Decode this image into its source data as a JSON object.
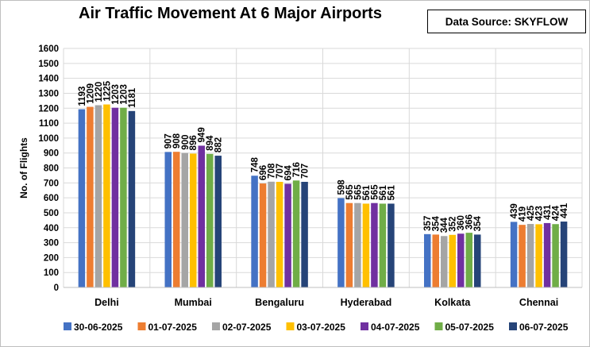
{
  "title": "Air Traffic Movement At 6 Major Airports",
  "source_label": "Data Source: SKYFLOW",
  "chart_data": {
    "type": "bar",
    "ylabel": "No. of Flights",
    "xlabel": "",
    "ylim": [
      0,
      1600
    ],
    "yticks": [
      0,
      100,
      200,
      300,
      400,
      500,
      600,
      700,
      800,
      900,
      1000,
      1100,
      1200,
      1300,
      1400,
      1500,
      1600
    ],
    "grid": true,
    "legend_position": "bottom",
    "data_labels": true,
    "categories": [
      "Delhi",
      "Mumbai",
      "Bengaluru",
      "Hyderabad",
      "Kolkata",
      "Chennai"
    ],
    "series": [
      {
        "name": "30-06-2025",
        "color": "#4472C4",
        "values": [
          1193,
          907,
          748,
          598,
          357,
          439
        ]
      },
      {
        "name": "01-07-2025",
        "color": "#ED7D31",
        "values": [
          1209,
          908,
          696,
          565,
          354,
          419
        ]
      },
      {
        "name": "02-07-2025",
        "color": "#A5A5A5",
        "values": [
          1220,
          900,
          708,
          565,
          344,
          425
        ]
      },
      {
        "name": "03-07-2025",
        "color": "#FFC000",
        "values": [
          1225,
          896,
          707,
          561,
          352,
          423
        ]
      },
      {
        "name": "04-07-2025",
        "color": "#7030A0",
        "values": [
          1203,
          949,
          694,
          565,
          360,
          431
        ]
      },
      {
        "name": "05-07-2025",
        "color": "#70AD47",
        "values": [
          1203,
          894,
          716,
          561,
          366,
          424
        ]
      },
      {
        "name": "06-07-2025",
        "color": "#264478",
        "values": [
          1181,
          882,
          707,
          561,
          354,
          441
        ]
      }
    ]
  }
}
